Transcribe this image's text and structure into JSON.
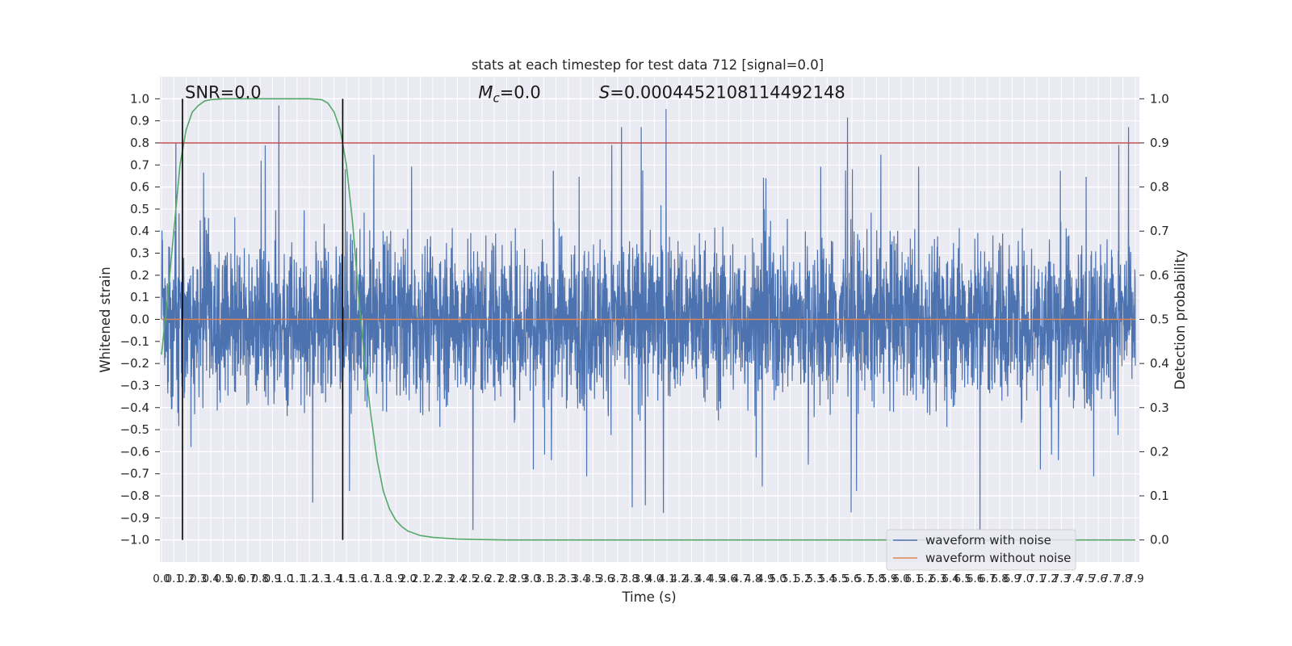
{
  "chart_data": {
    "type": "line",
    "title": "stats at each timestep for test data 712 [signal=0.0]",
    "xlabel": "Time (s)",
    "ylabel": "Whitened strain",
    "y2label": "Detection probability",
    "xlim": [
      0.0,
      7.9
    ],
    "ylim": [
      -1.1,
      1.1
    ],
    "y2lim": [
      -0.05,
      1.05
    ],
    "x_ticks": [
      0.0,
      0.1,
      0.2,
      0.3,
      0.4,
      0.5,
      0.6,
      0.7,
      0.8,
      0.9,
      1.0,
      1.1,
      1.2,
      1.3,
      1.4,
      1.5,
      1.6,
      1.7,
      1.8,
      1.9,
      2.0,
      2.1,
      2.2,
      2.3,
      2.4,
      2.5,
      2.6,
      2.7,
      2.8,
      2.9,
      3.0,
      3.1,
      3.2,
      3.3,
      3.4,
      3.5,
      3.6,
      3.7,
      3.8,
      3.9,
      4.0,
      4.1,
      4.2,
      4.3,
      4.4,
      4.5,
      4.6,
      4.7,
      4.8,
      4.9,
      5.0,
      5.1,
      5.2,
      5.3,
      5.4,
      5.5,
      5.6,
      5.7,
      5.8,
      5.9,
      6.0,
      6.1,
      6.2,
      6.3,
      6.4,
      6.5,
      6.6,
      6.7,
      6.8,
      6.9,
      7.0,
      7.1,
      7.2,
      7.3,
      7.4,
      7.5,
      7.6,
      7.7,
      7.8,
      7.9
    ],
    "y_ticks": [
      -1.0,
      -0.9,
      -0.8,
      -0.7,
      -0.6,
      -0.5,
      -0.4,
      -0.3,
      -0.2,
      -0.1,
      0.0,
      0.1,
      0.2,
      0.3,
      0.4,
      0.5,
      0.6,
      0.7,
      0.8,
      0.9,
      1.0
    ],
    "y2_ticks": [
      0.0,
      0.1,
      0.2,
      0.3,
      0.4,
      0.5,
      0.6,
      0.7,
      0.8,
      0.9,
      1.0
    ],
    "grid": true,
    "legend_position": "lower-right",
    "series": [
      {
        "name": "waveform with noise",
        "color": "#4c72b0",
        "axis": "left",
        "kind": "noise",
        "amplitude_typical": 0.35,
        "amplitude_max": 1.0
      },
      {
        "name": "waveform without noise",
        "color": "#dd8452",
        "axis": "left",
        "kind": "constant",
        "value": 0.0
      },
      {
        "name": "",
        "color": "#55a868",
        "axis": "right",
        "kind": "curve",
        "x": [
          0.0,
          0.05,
          0.1,
          0.15,
          0.2,
          0.25,
          0.3,
          0.35,
          0.4,
          0.5,
          0.6,
          0.8,
          1.0,
          1.2,
          1.3,
          1.35,
          1.4,
          1.45,
          1.5,
          1.55,
          1.6,
          1.65,
          1.7,
          1.75,
          1.8,
          1.85,
          1.9,
          1.95,
          2.0,
          2.1,
          2.2,
          2.3,
          2.4,
          2.6,
          2.8,
          3.0,
          4.0,
          5.0,
          6.0,
          7.0,
          7.9
        ],
        "y": [
          0.42,
          0.55,
          0.7,
          0.85,
          0.93,
          0.97,
          0.985,
          0.995,
          0.998,
          1.0,
          1.0,
          1.0,
          1.0,
          1.0,
          0.998,
          0.99,
          0.97,
          0.93,
          0.85,
          0.72,
          0.55,
          0.4,
          0.28,
          0.18,
          0.11,
          0.07,
          0.045,
          0.03,
          0.02,
          0.01,
          0.006,
          0.004,
          0.002,
          0.001,
          0.0,
          0.0,
          0.0,
          0.0,
          0.0,
          0.0,
          0.0
        ]
      }
    ],
    "threshold_line": {
      "value": 0.9,
      "axis": "right",
      "color": "#c44e52"
    },
    "vertical_lines": [
      {
        "x": 0.17,
        "color": "#000000"
      },
      {
        "x": 1.47,
        "color": "#000000"
      }
    ],
    "annotations": [
      {
        "text": "SNR=0.0",
        "x": 0.19,
        "y": 1.0
      },
      {
        "html": "M<sub>c</sub>=0.0",
        "text": "Mc=0.0",
        "x": 2.57,
        "y": 1.0
      },
      {
        "text": "S=0.0004452108114492148",
        "x": 3.55,
        "y": 1.0
      }
    ]
  }
}
